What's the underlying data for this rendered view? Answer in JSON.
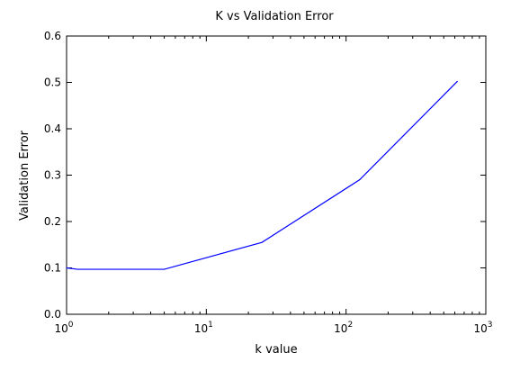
{
  "chart_data": {
    "type": "line",
    "title": "K vs Validation Error",
    "xlabel": "k value",
    "ylabel": "Validation Error",
    "xscale": "log",
    "xlim": [
      1,
      1000
    ],
    "ylim": [
      0,
      0.6
    ],
    "x_ticks": [
      {
        "value": 1,
        "base": "10",
        "exp": "0"
      },
      {
        "value": 10,
        "base": "10",
        "exp": "1"
      },
      {
        "value": 100,
        "base": "10",
        "exp": "2"
      },
      {
        "value": 1000,
        "base": "10",
        "exp": "3"
      }
    ],
    "y_ticks": [
      "0.0",
      "0.1",
      "0.2",
      "0.3",
      "0.4",
      "0.5",
      "0.6"
    ],
    "grid": false,
    "series": [
      {
        "color": "#0000ff",
        "x": [
          1,
          1.2,
          5,
          25,
          125,
          625
        ],
        "y": [
          0.1,
          0.097,
          0.097,
          0.155,
          0.29,
          0.502
        ]
      }
    ]
  }
}
